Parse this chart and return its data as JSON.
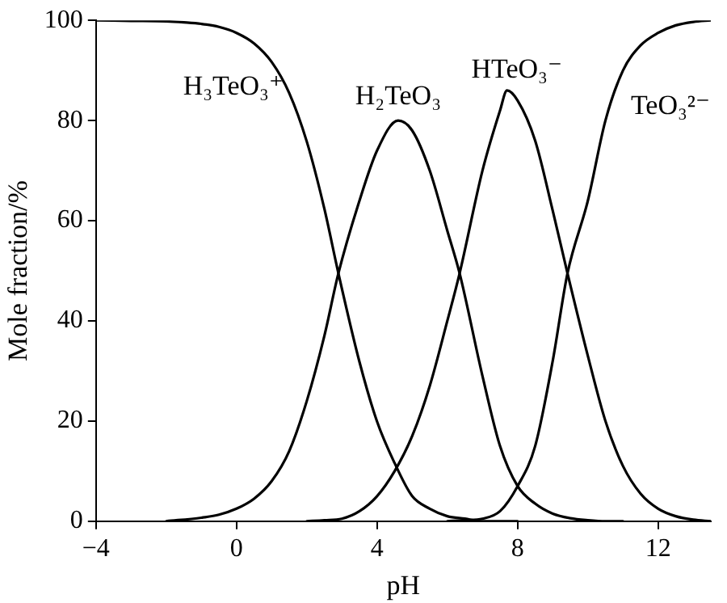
{
  "chart_data": {
    "type": "line",
    "xlabel": "pH",
    "ylabel": "Mole fraction/%",
    "xlim": [
      -4,
      13.5
    ],
    "ylim": [
      0,
      100
    ],
    "xticks": [
      -4,
      0,
      4,
      8,
      12
    ],
    "yticks": [
      0,
      20,
      40,
      60,
      80,
      100
    ],
    "grid": false,
    "legend": false,
    "marker": "none",
    "line_style": "solid",
    "series": [
      {
        "name": "H₃TeO₃⁺",
        "color": "#000000",
        "x": [
          -4,
          -3,
          -2,
          -1.5,
          -1,
          -0.5,
          0,
          0.5,
          1,
          1.5,
          2,
          2.5,
          2.9,
          3.5,
          4,
          4.5,
          5,
          5.5,
          6,
          6.5,
          7,
          8
        ],
        "values": [
          100,
          99.9,
          99.8,
          99.6,
          99.3,
          98.7,
          97.5,
          95.4,
          91.7,
          85.5,
          75.8,
          62.4,
          49.5,
          31.8,
          19.9,
          11.6,
          5,
          2.5,
          1,
          0.5,
          0,
          0
        ]
      },
      {
        "name": "H₂TeO₃",
        "color": "#000000",
        "x": [
          -2,
          -1,
          -0.5,
          0,
          0.5,
          1,
          1.5,
          2,
          2.5,
          2.9,
          3.5,
          4,
          4.6,
          5,
          5.5,
          6,
          6.35,
          7,
          7.5,
          8,
          8.5,
          9,
          9.5,
          10,
          10.5,
          11
        ],
        "values": [
          0,
          0.7,
          1.3,
          2.5,
          4.5,
          8,
          14,
          24,
          37,
          49.5,
          64,
          74,
          80,
          78,
          70,
          58,
          49.5,
          29,
          15,
          7,
          3.5,
          1.5,
          0.6,
          0.2,
          0,
          0
        ]
      },
      {
        "name": "HTeO₃⁻",
        "color": "#000000",
        "x": [
          2,
          2.5,
          3,
          3.5,
          4,
          4.5,
          5,
          5.5,
          6,
          6.35,
          7,
          7.5,
          7.7,
          8,
          8.5,
          9,
          9.42,
          10,
          10.5,
          11,
          11.5,
          12,
          12.5,
          13,
          13.5
        ],
        "values": [
          0,
          0.2,
          0.5,
          2,
          5,
          10,
          17,
          27,
          40,
          49.5,
          70,
          82,
          86,
          84,
          76,
          62,
          49.5,
          33,
          20,
          11,
          5.5,
          2.5,
          1,
          0.3,
          0
        ]
      },
      {
        "name": "TeO₃²⁻",
        "color": "#000000",
        "x": [
          6,
          6.5,
          7,
          7.5,
          8,
          8.5,
          9,
          9.42,
          10,
          10.5,
          11,
          11.5,
          12,
          12.5,
          13,
          13.5
        ],
        "values": [
          0,
          0.2,
          0.5,
          2,
          7,
          15,
          32,
          49.5,
          64,
          80,
          90,
          95,
          97.5,
          99,
          99.7,
          100
        ]
      }
    ]
  }
}
